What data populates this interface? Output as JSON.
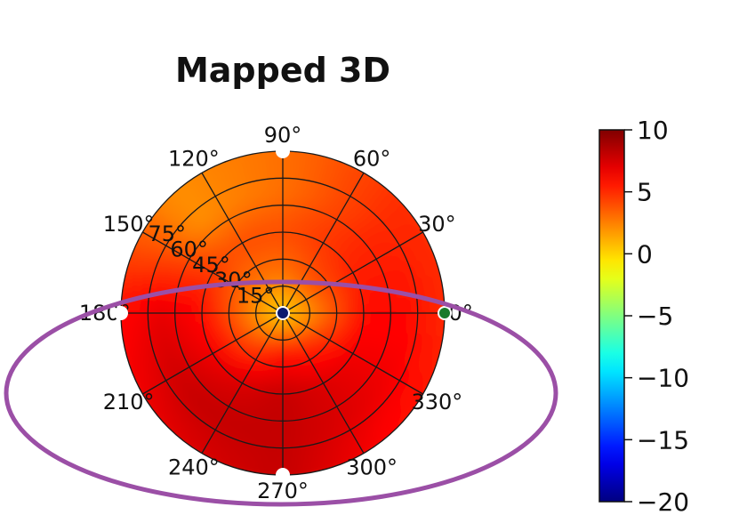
{
  "chart_data": {
    "type": "heatmap",
    "projection": "polar",
    "title": "Mapped 3D",
    "angular_ticks_deg": [
      0,
      30,
      60,
      90,
      120,
      150,
      180,
      210,
      240,
      270,
      300,
      330
    ],
    "angular_tick_labels": [
      "0°",
      "30°",
      "60°",
      "90°",
      "120°",
      "150°",
      "180°",
      "210°",
      "240°",
      "270°",
      "300°",
      "330°"
    ],
    "radial_ticks_deg": [
      15,
      30,
      45,
      60,
      75
    ],
    "radial_tick_labels": [
      "15°",
      "30°",
      "45°",
      "60°",
      "75°"
    ],
    "radial_range_deg": [
      0,
      90
    ],
    "grid": true,
    "colorbar": {
      "colormap": "jet",
      "range": [
        -20,
        10
      ],
      "ticks": [
        10,
        5,
        0,
        -5,
        -10,
        -15,
        -20
      ],
      "tick_labels": [
        "10",
        "5",
        "0",
        "−5",
        "−10",
        "−15",
        "−20"
      ],
      "placement": "right"
    },
    "value_samples": {
      "note": "approximate field values read from colors",
      "angles_deg": [
        0,
        45,
        90,
        135,
        180,
        225,
        270,
        315
      ],
      "radii_deg": [
        0,
        22.5,
        45,
        67.5,
        90
      ],
      "values": [
        [
          0,
          0,
          0,
          0,
          0,
          0,
          0,
          0
        ],
        [
          3,
          4,
          3,
          3,
          3,
          4,
          6,
          5
        ],
        [
          6,
          5,
          4,
          4,
          6,
          7,
          8,
          7
        ],
        [
          6,
          5,
          3,
          2,
          7,
          8,
          8,
          7
        ],
        [
          5,
          5,
          3,
          2,
          6,
          7,
          8,
          6
        ]
      ]
    },
    "markers": [
      {
        "name": "center",
        "azimuth_deg": 0,
        "radius_deg": 0,
        "color": "#0a1a6e"
      },
      {
        "name": "east-edge",
        "azimuth_deg": 0,
        "radius_deg": 90,
        "color": "#1a7a2a"
      },
      {
        "name": "north-edge",
        "azimuth_deg": 90,
        "radius_deg": 90,
        "color": "#ffffff"
      },
      {
        "name": "south-edge",
        "azimuth_deg": 270,
        "radius_deg": 90,
        "color": "#ffffff"
      },
      {
        "name": "west-edge",
        "azimuth_deg": 180,
        "radius_deg": 90,
        "color": "#ffffff"
      }
    ],
    "annotation": {
      "shape": "ellipse",
      "color": "#9b4fa6",
      "highlights": "lower half of polar plot"
    }
  }
}
